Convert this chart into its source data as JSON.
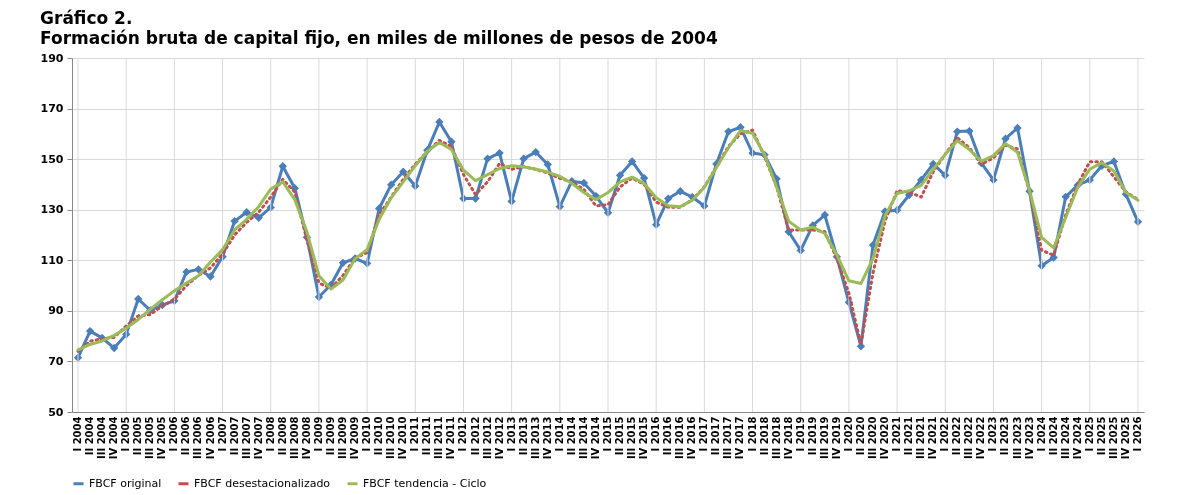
{
  "chart_data": {
    "type": "line",
    "title": "Gráfico 2.",
    "subtitle": "Formación bruta de capital fijo, en miles de millones de pesos de 2004",
    "categories": [
      "I 2004",
      "II 2004",
      "III 2004",
      "IV 2004",
      "I 2005",
      "II 2005",
      "III 2005",
      "IV 2005",
      "I 2006",
      "II 2006",
      "III 2006",
      "IV 2006",
      "I 2007",
      "II 2007",
      "III 2007",
      "IV 2007",
      "I 2008",
      "II 2008",
      "III 2008",
      "IV 2008",
      "I 2009",
      "II 2009",
      "III 2009",
      "IV 2009",
      "I 2010",
      "II 2010",
      "III 2010",
      "IV 2010",
      "I 2011",
      "II 2011",
      "III 2011",
      "IV 2011",
      "I 2012",
      "II 2012",
      "III 2012",
      "IV 2012",
      "I 2013",
      "II 2013",
      "III 2013",
      "IV 2013",
      "I 2014",
      "II 2014",
      "III 2014",
      "IV 2014",
      "I 2015",
      "II 2015",
      "III 2015",
      "IV 2015",
      "I 2016",
      "II 2016",
      "III 2016",
      "IV 2016",
      "I 2017",
      "II 2017",
      "III 2017",
      "IV 2017",
      "I 2018",
      "II 2018",
      "III 2018",
      "IV 2018",
      "I 2019",
      "II 2019",
      "III 2019",
      "IV 2019",
      "I 2020",
      "II 2020",
      "III 2020",
      "IV 2020",
      "I 2021",
      "II 2021",
      "III 2021",
      "IV 2021",
      "I 2022",
      "II 2022",
      "III 2022",
      "IV 2022",
      "I 2023",
      "II 2023",
      "III 2023",
      "IV 2023",
      "I 2024",
      "II 2024",
      "III 2024",
      "IV 2024",
      "I 2025",
      "II 2025",
      "III 2025",
      "IV 2025",
      "I 2026"
    ],
    "series": [
      {
        "name": "FBCF original",
        "color": "#4a7ebb",
        "marker": "diamond",
        "line_style": "solid",
        "values": [
          71.5,
          82,
          79.3,
          75.3,
          80.7,
          94.7,
          90.2,
          92.3,
          94,
          105.4,
          106.4,
          103.6,
          111.4,
          125.5,
          129,
          126.8,
          130.9,
          147.2,
          138.5,
          119.1,
          95.5,
          100.3,
          109,
          110.7,
          108.8,
          130.5,
          139.9,
          145,
          139.4,
          153.5,
          164.7,
          156.9,
          134.4,
          134.4,
          150.2,
          152.4,
          133.3,
          150.2,
          152.8,
          147.9,
          131.2,
          141.3,
          140.6,
          135.4,
          128.8,
          143.6,
          149.1,
          142.5,
          124.1,
          134.4,
          137.3,
          135,
          131.5,
          148.1,
          160.9,
          162.6,
          152.4,
          151.7,
          142.2,
          121.3,
          113.9,
          123.8,
          127.9,
          111.4,
          93.4,
          76,
          116,
          129.3,
          129.8,
          135.8,
          141.8,
          148.1,
          143.6,
          160.9,
          161.1,
          148.4,
          141.8,
          158.1,
          162.3,
          137.3,
          107.8,
          111.1,
          135.1,
          139.7,
          141.8,
          147.4,
          149.1,
          136.1,
          125.2
        ]
      },
      {
        "name": "FBCF desestacionalizado",
        "color": "#c0504d",
        "marker": "none",
        "line_style": "dotted",
        "values": [
          74,
          78,
          79,
          79.5,
          84,
          88,
          88.5,
          92,
          94.5,
          100,
          104,
          107,
          112.5,
          120,
          125,
          129,
          135,
          142,
          137,
          118,
          101,
          99,
          104,
          111,
          113,
          128,
          135,
          142,
          148,
          153,
          157.4,
          155,
          143.9,
          136,
          141,
          148.3,
          146,
          147,
          146,
          144.5,
          142.4,
          141,
          138,
          131.5,
          132,
          139,
          142.5,
          140,
          133,
          131,
          131,
          134,
          139,
          147,
          155,
          160,
          161.5,
          151,
          139,
          122,
          122,
          122,
          121.3,
          110.7,
          97,
          76.7,
          105,
          125.5,
          137.5,
          137,
          135,
          145,
          152,
          158.5,
          154.5,
          148,
          150.5,
          155.5,
          154,
          137,
          114,
          112,
          128,
          140,
          149,
          149,
          143,
          137,
          134
        ]
      },
      {
        "name": "FBCF tendencia - Ciclo",
        "color": "#9bbb59",
        "marker": "none",
        "line_style": "solid",
        "values": [
          74.6,
          76.7,
          78.1,
          80.3,
          83.1,
          86.6,
          90.6,
          94.4,
          97.9,
          101,
          103.9,
          109.3,
          114.2,
          122,
          126.2,
          131.2,
          138.2,
          141,
          134,
          121.3,
          103.9,
          98.6,
          102.2,
          110.6,
          114.2,
          126.2,
          134.7,
          141,
          147.4,
          153.1,
          156.6,
          153.8,
          145.7,
          141.5,
          143.9,
          146.3,
          147.4,
          147,
          146,
          144.9,
          143.2,
          140.4,
          136.8,
          134,
          136.8,
          141,
          142.9,
          140.4,
          134.7,
          131.6,
          131.2,
          133.7,
          138.9,
          146.7,
          154.5,
          161.3,
          160.2,
          151.7,
          138.9,
          125.5,
          122,
          123.1,
          120.6,
          112.1,
          101.9,
          100.8,
          110.7,
          127.6,
          136.4,
          137.5,
          139.6,
          146,
          151.9,
          157.3,
          153.8,
          149.1,
          151.4,
          156.2,
          152.7,
          137.5,
          119.1,
          114.9,
          126.9,
          138.9,
          146,
          148.6,
          145.3,
          136.8,
          133.7
        ]
      }
    ],
    "ylim": [
      50,
      190
    ],
    "yticks": [
      50,
      70,
      90,
      110,
      130,
      150,
      170,
      190
    ],
    "grid": true,
    "legend": "bottom"
  }
}
